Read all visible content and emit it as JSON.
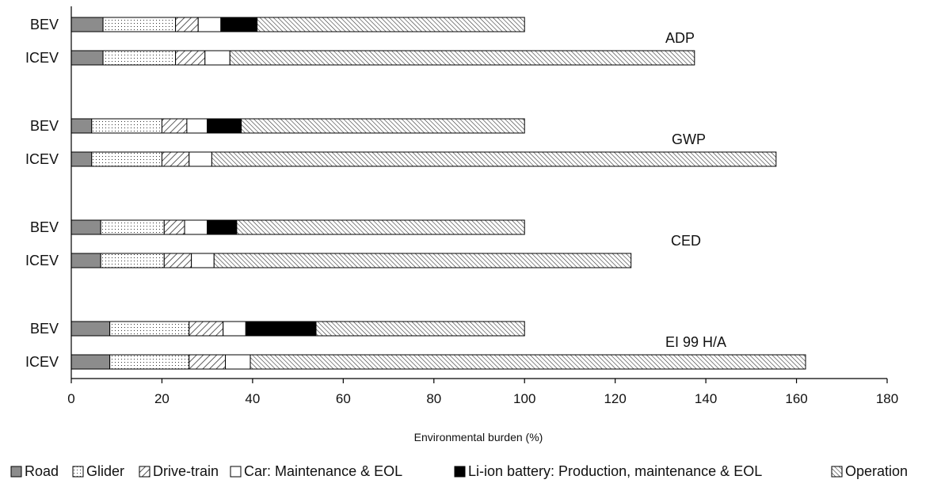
{
  "chart_data": {
    "type": "bar",
    "orientation": "horizontal",
    "stacked": true,
    "xlabel": "Environmental burden (%)",
    "xlim": [
      0,
      180
    ],
    "xticks": [
      0,
      20,
      40,
      60,
      80,
      100,
      120,
      140,
      160,
      180
    ],
    "grid": false,
    "legend_position": "bottom",
    "components": [
      {
        "name": "Road",
        "fill": "#8c8c8c",
        "pattern": "solid"
      },
      {
        "name": "Glider",
        "fill": "#ffffff",
        "pattern": "dots"
      },
      {
        "name": "Drive-train",
        "fill": "#ffffff",
        "pattern": "diag-wide"
      },
      {
        "name": "Car: Maintenance & EOL",
        "fill": "#ffffff",
        "pattern": "none"
      },
      {
        "name": "Li-ion battery: Production, maintenance & EOL",
        "fill": "#000000",
        "pattern": "solid"
      },
      {
        "name": "Operation",
        "fill": "#ffffff",
        "pattern": "diag-dense"
      }
    ],
    "groups": [
      {
        "label": "ADP",
        "bars": [
          {
            "category": "BEV",
            "values": [
              7,
              16,
              5,
              5,
              8,
              59
            ]
          },
          {
            "category": "ICEV",
            "values": [
              7,
              16,
              6.5,
              5.5,
              0,
              102.5
            ]
          }
        ]
      },
      {
        "label": "GWP",
        "bars": [
          {
            "category": "BEV",
            "values": [
              4.5,
              15.5,
              5.5,
              4.5,
              7.5,
              62.5
            ]
          },
          {
            "category": "ICEV",
            "values": [
              4.5,
              15.5,
              6,
              5,
              0,
              124.5
            ]
          }
        ]
      },
      {
        "label": "CED",
        "bars": [
          {
            "category": "BEV",
            "values": [
              6.5,
              14,
              4.5,
              5,
              6.5,
              63.5
            ]
          },
          {
            "category": "ICEV",
            "values": [
              6.5,
              14,
              6,
              5,
              0,
              92
            ]
          }
        ]
      },
      {
        "label": "EI 99 H/A",
        "bars": [
          {
            "category": "BEV",
            "values": [
              8.5,
              17.5,
              7.5,
              5,
              15.5,
              46
            ]
          },
          {
            "category": "ICEV",
            "values": [
              8.5,
              17.5,
              8,
              5.5,
              0,
              122.5
            ]
          }
        ]
      }
    ]
  }
}
